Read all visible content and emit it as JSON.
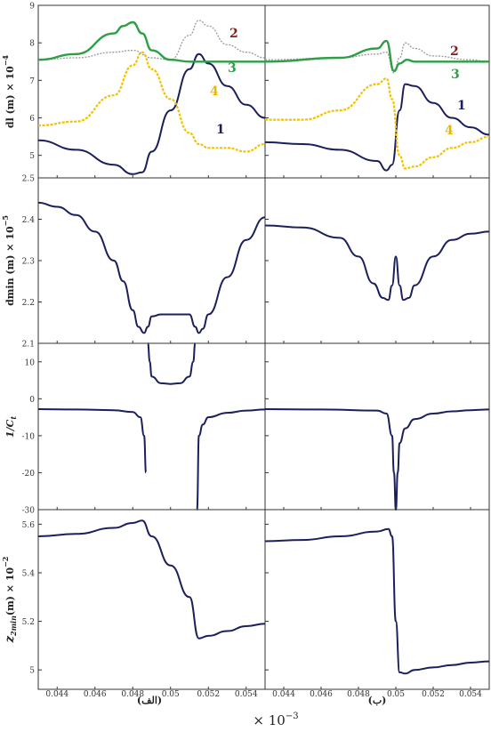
{
  "figure": {
    "xaxis_multiplier": "× 10",
    "xaxis_multiplier_exp": "−3",
    "x_ticks": [
      "0.044",
      "0.046",
      "0.048",
      "0.05",
      "0.052",
      "0.054"
    ],
    "x_tick_values": [
      0.044,
      0.046,
      0.048,
      0.05,
      0.052,
      0.054
    ],
    "xlim": [
      0.043,
      0.055
    ],
    "panel_label_left": "(الف)",
    "panel_label_right": "(ب)"
  },
  "rows": [
    {
      "ylabel_main": "dl (m) × 10",
      "ylabel_exp": "−4",
      "ylim": [
        4.4,
        9
      ],
      "ticks": [
        5,
        6,
        7,
        8,
        9
      ],
      "tick_labels": [
        "5",
        "6",
        "7",
        "8",
        "9"
      ]
    },
    {
      "ylabel_main": "dmin (m) × 10",
      "ylabel_exp": "−5",
      "ylim": [
        2.1,
        2.5
      ],
      "ticks": [
        2.1,
        2.2,
        2.3,
        2.4,
        2.5
      ],
      "tick_labels": [
        "2.1",
        "2.2",
        "2.3",
        "2.4",
        "2.5"
      ]
    },
    {
      "ylabel_main": "1/C",
      "ylabel_sub": "t",
      "ylim": [
        -30,
        15
      ],
      "ticks": [
        10,
        0,
        -10,
        -20,
        -30
      ],
      "tick_labels": [
        "10",
        "0",
        "-10",
        "-20",
        "-30"
      ]
    },
    {
      "ylabel_main": "(m) × 10",
      "ylabel_z": "z",
      "ylabel_sub": "2min",
      "ylabel_exp": "−2",
      "ylim": [
        4.92,
        5.66
      ],
      "ticks": [
        5,
        5.2,
        5.4,
        5.6
      ],
      "tick_labels": [
        "5",
        "5.2",
        "5.4",
        "5.6"
      ]
    }
  ],
  "legend_numbers": {
    "left": [
      {
        "text": "2",
        "color": "#8B1A1A"
      },
      {
        "text": "3",
        "color": "#2E9E47"
      },
      {
        "text": "1",
        "color": "#1B1F5C"
      },
      {
        "text": "4",
        "color": "#E8B600"
      }
    ],
    "right": [
      {
        "text": "2",
        "color": "#8B1A1A"
      },
      {
        "text": "3",
        "color": "#2E9E47"
      },
      {
        "text": "1",
        "color": "#1B1F5C"
      },
      {
        "text": "4",
        "color": "#E8B600"
      }
    ]
  },
  "colors": {
    "series1": "#1B1F5C",
    "series2": "#9A9A9A",
    "series3": "#2E9E47",
    "series4": "#F2C200",
    "curve": "#1B1F5C"
  },
  "chart_data": [
    {
      "panel": "row1-left",
      "type": "line",
      "xlim": [
        0.043,
        0.055
      ],
      "ylim": [
        4.4,
        9
      ],
      "series": [
        {
          "name": "1",
          "x": [
            0.043,
            0.045,
            0.047,
            0.048,
            0.0485,
            0.049,
            0.05,
            0.051,
            0.0515,
            0.052,
            0.053,
            0.054,
            0.055
          ],
          "y": [
            5.4,
            5.15,
            4.75,
            4.5,
            4.55,
            5.1,
            6.2,
            7.3,
            7.7,
            7.45,
            6.85,
            6.35,
            6.0
          ]
        },
        {
          "name": "2",
          "x": [
            0.043,
            0.045,
            0.047,
            0.048,
            0.049,
            0.05,
            0.051,
            0.0515,
            0.052,
            0.053,
            0.054,
            0.055
          ],
          "y": [
            7.55,
            7.6,
            7.75,
            7.8,
            7.6,
            7.55,
            8.2,
            8.6,
            8.45,
            7.95,
            7.75,
            7.6
          ]
        },
        {
          "name": "3",
          "x": [
            0.043,
            0.045,
            0.047,
            0.0475,
            0.048,
            0.0485,
            0.049,
            0.05,
            0.051,
            0.052,
            0.053,
            0.055
          ],
          "y": [
            7.55,
            7.7,
            8.25,
            8.45,
            8.55,
            8.25,
            7.8,
            7.55,
            7.5,
            7.5,
            7.5,
            7.5
          ]
        },
        {
          "name": "4",
          "x": [
            0.043,
            0.045,
            0.047,
            0.048,
            0.0485,
            0.049,
            0.05,
            0.051,
            0.0515,
            0.052,
            0.053,
            0.054,
            0.055
          ],
          "y": [
            5.8,
            5.9,
            6.6,
            7.4,
            7.75,
            7.3,
            6.5,
            5.6,
            5.3,
            5.2,
            5.2,
            5.1,
            5.3
          ]
        }
      ]
    },
    {
      "panel": "row1-right",
      "type": "line",
      "xlim": [
        0.043,
        0.055
      ],
      "ylim": [
        4.4,
        9
      ],
      "series": [
        {
          "name": "1",
          "x": [
            0.043,
            0.045,
            0.047,
            0.049,
            0.0495,
            0.0498,
            0.0502,
            0.0505,
            0.051,
            0.052,
            0.053,
            0.054,
            0.055
          ],
          "y": [
            5.35,
            5.3,
            5.15,
            4.85,
            4.6,
            4.75,
            6.2,
            6.9,
            6.85,
            6.4,
            6.0,
            5.75,
            5.55
          ]
        },
        {
          "name": "2",
          "x": [
            0.043,
            0.047,
            0.049,
            0.0495,
            0.0499,
            0.0502,
            0.0505,
            0.051,
            0.052,
            0.054,
            0.055
          ],
          "y": [
            7.55,
            7.6,
            7.7,
            7.75,
            7.2,
            7.6,
            8.0,
            7.85,
            7.65,
            7.55,
            7.5
          ]
        },
        {
          "name": "3",
          "x": [
            0.043,
            0.047,
            0.049,
            0.0495,
            0.0499,
            0.0502,
            0.0506,
            0.051,
            0.052,
            0.054,
            0.055
          ],
          "y": [
            7.5,
            7.6,
            7.85,
            8.05,
            7.25,
            7.45,
            7.55,
            7.5,
            7.5,
            7.5,
            7.5
          ]
        },
        {
          "name": "4",
          "x": [
            0.043,
            0.045,
            0.047,
            0.049,
            0.0495,
            0.0498,
            0.0502,
            0.0505,
            0.051,
            0.052,
            0.053,
            0.054,
            0.055
          ],
          "y": [
            5.95,
            5.95,
            6.2,
            6.9,
            7.05,
            6.5,
            5.0,
            4.65,
            4.7,
            4.95,
            5.2,
            5.35,
            5.5
          ]
        }
      ]
    },
    {
      "panel": "row2-left",
      "type": "line",
      "xlim": [
        0.043,
        0.055
      ],
      "ylim": [
        2.1,
        2.5
      ],
      "series": [
        {
          "name": "dmin",
          "x": [
            0.043,
            0.044,
            0.045,
            0.046,
            0.047,
            0.0475,
            0.048,
            0.0483,
            0.0486,
            0.0488,
            0.049,
            0.0495,
            0.05,
            0.051,
            0.0513,
            0.0515,
            0.0517,
            0.052,
            0.053,
            0.054,
            0.055
          ],
          "y": [
            2.44,
            2.43,
            2.41,
            2.37,
            2.3,
            2.25,
            2.18,
            2.14,
            2.125,
            2.14,
            2.165,
            2.17,
            2.17,
            2.17,
            2.14,
            2.125,
            2.135,
            2.17,
            2.26,
            2.35,
            2.405
          ]
        }
      ]
    },
    {
      "panel": "row2-right",
      "type": "line",
      "xlim": [
        0.043,
        0.055
      ],
      "ylim": [
        2.1,
        2.5
      ],
      "series": [
        {
          "name": "dmin",
          "x": [
            0.043,
            0.045,
            0.047,
            0.048,
            0.0488,
            0.0493,
            0.0496,
            0.0498,
            0.05,
            0.0502,
            0.0504,
            0.0507,
            0.051,
            0.052,
            0.053,
            0.054,
            0.055
          ],
          "y": [
            2.385,
            2.38,
            2.355,
            2.31,
            2.245,
            2.21,
            2.205,
            2.24,
            2.31,
            2.24,
            2.205,
            2.21,
            2.24,
            2.31,
            2.35,
            2.365,
            2.37
          ]
        }
      ]
    },
    {
      "panel": "row3-left",
      "type": "line",
      "xlim": [
        0.043,
        0.055
      ],
      "ylim": [
        -30,
        15
      ],
      "series": [
        {
          "name": "1/Ct (a)",
          "x": [
            0.043,
            0.045,
            0.047,
            0.048,
            0.0484,
            0.0486,
            0.0487
          ],
          "y": [
            -2.8,
            -2.9,
            -3.1,
            -3.6,
            -5,
            -10,
            -20
          ]
        },
        {
          "name": "1/Ct (b)",
          "x": [
            0.0488,
            0.0489,
            0.049,
            0.0495,
            0.05,
            0.0505,
            0.051,
            0.0512,
            0.0513
          ],
          "y": [
            15,
            10,
            6,
            4.2,
            4,
            4.2,
            6,
            10,
            15
          ]
        },
        {
          "name": "1/Ct (c)",
          "x": [
            0.0514,
            0.0515,
            0.0517,
            0.052,
            0.053,
            0.054,
            0.055
          ],
          "y": [
            -30,
            -10,
            -7,
            -5,
            -3.8,
            -3.2,
            -2.9
          ]
        }
      ]
    },
    {
      "panel": "row3-right",
      "type": "line",
      "xlim": [
        0.043,
        0.055
      ],
      "ylim": [
        -30,
        15
      ],
      "series": [
        {
          "name": "1/Ct",
          "x": [
            0.043,
            0.046,
            0.049,
            0.0495,
            0.0498,
            0.0499,
            0.05,
            0.0501,
            0.0502,
            0.0505,
            0.051,
            0.052,
            0.053,
            0.054,
            0.055
          ],
          "y": [
            -2.8,
            -2.9,
            -3.2,
            -4,
            -10,
            -20,
            -30,
            -20,
            -12,
            -8,
            -5.5,
            -4,
            -3.4,
            -3.1,
            -2.9
          ]
        }
      ]
    },
    {
      "panel": "row4-left",
      "type": "line",
      "xlim": [
        0.043,
        0.055
      ],
      "ylim": [
        4.92,
        5.66
      ],
      "series": [
        {
          "name": "z2min",
          "x": [
            0.043,
            0.045,
            0.047,
            0.048,
            0.0485,
            0.049,
            0.05,
            0.051,
            0.0515,
            0.052,
            0.053,
            0.054,
            0.055
          ],
          "y": [
            5.55,
            5.56,
            5.585,
            5.605,
            5.615,
            5.55,
            5.43,
            5.3,
            5.13,
            5.14,
            5.16,
            5.18,
            5.19
          ]
        }
      ]
    },
    {
      "panel": "row4-right",
      "type": "line",
      "xlim": [
        0.043,
        0.055
      ],
      "ylim": [
        4.92,
        5.66
      ],
      "series": [
        {
          "name": "z2min",
          "x": [
            0.043,
            0.045,
            0.047,
            0.049,
            0.0496,
            0.0498,
            0.05,
            0.0502,
            0.0505,
            0.051,
            0.052,
            0.053,
            0.054,
            0.055
          ],
          "y": [
            5.53,
            5.535,
            5.55,
            5.57,
            5.58,
            5.55,
            5.2,
            4.99,
            4.985,
            5.0,
            5.01,
            5.02,
            5.03,
            5.035
          ]
        }
      ]
    }
  ]
}
